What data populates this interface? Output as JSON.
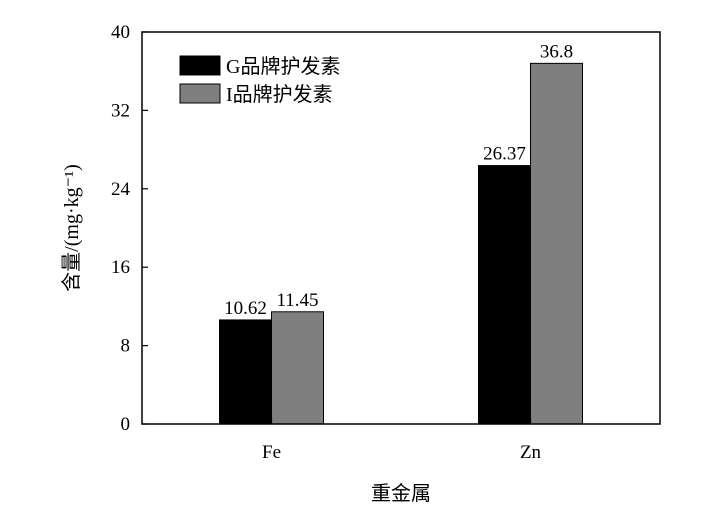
{
  "chart_data": {
    "type": "bar",
    "xlabel": "重金属",
    "ylabel": "含量/(mg·kg⁻¹)",
    "ylim": [
      0,
      40
    ],
    "yticks": [
      0,
      8,
      16,
      24,
      32,
      40
    ],
    "grid": false,
    "legend_position": "top-left",
    "categories": [
      "Fe",
      "Zn"
    ],
    "series": [
      {
        "name": "G品牌护发素",
        "color": "#000000",
        "values": [
          10.62,
          26.37
        ],
        "labels": [
          "10.62",
          "26.37"
        ]
      },
      {
        "name": "I品牌护发素",
        "color": "#7f7f7f",
        "values": [
          11.45,
          36.8
        ],
        "labels": [
          "11.45",
          "36.8"
        ]
      }
    ]
  }
}
